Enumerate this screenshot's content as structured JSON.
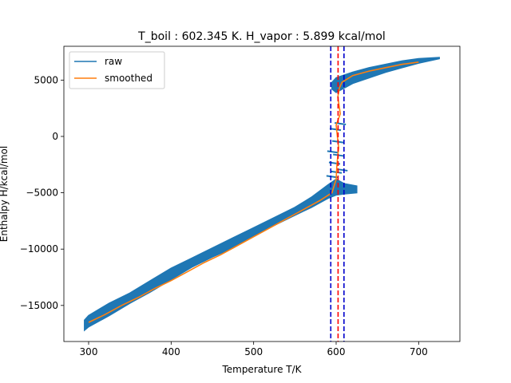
{
  "chart_data": {
    "type": "line",
    "title": "T_boil : 602.345 K. H_vapor : 5.899 kcal/mol",
    "xlabel": "Temperature T/K",
    "ylabel": "Enthalpy H/kcal/mol",
    "xlim": [
      270,
      750
    ],
    "ylim": [
      -18200,
      8000
    ],
    "xticks": [
      300,
      400,
      500,
      600,
      700
    ],
    "yticks": [
      -15000,
      -10000,
      -5000,
      0,
      5000
    ],
    "grid": false,
    "legend": {
      "position": "top-left",
      "entries": [
        "raw",
        "smoothed"
      ]
    },
    "colors": {
      "raw": "#1f77b4",
      "smoothed": "#ff7f0e",
      "tboil_line": "#ff0000",
      "bounds_line": "#0000cc"
    },
    "series": [
      {
        "name": "raw",
        "band": {
          "x": [
            295,
            300,
            325,
            350,
            375,
            400,
            425,
            450,
            475,
            500,
            525,
            550,
            570,
            590,
            600,
            610,
            625
          ],
          "y_low": [
            -17200,
            -16900,
            -15900,
            -14800,
            -13800,
            -12700,
            -11600,
            -10700,
            -9900,
            -8800,
            -7900,
            -7000,
            -6300,
            -5500,
            -5200,
            -5100,
            -5000
          ],
          "y_high": [
            -16300,
            -15900,
            -14800,
            -13900,
            -12800,
            -11700,
            -10800,
            -9900,
            -9000,
            -8100,
            -7200,
            -6300,
            -5400,
            -4300,
            -3800,
            -4200,
            -4400
          ]
        },
        "upper_band": {
          "x": [
            595,
            600,
            620,
            640,
            660,
            680,
            700,
            725
          ],
          "y_low": [
            4200,
            3900,
            4700,
            5200,
            5700,
            6100,
            6500,
            6900
          ],
          "y_high": [
            4800,
            5200,
            5700,
            6100,
            6400,
            6700,
            6900,
            7000
          ]
        },
        "transition_noise": {
          "x": [
            597,
            604,
            599,
            608,
            601,
            596,
            606,
            600,
            603
          ],
          "y": [
            -1300,
            -1600,
            -2300,
            -2900,
            -3100,
            -3500,
            1200,
            700,
            -400
          ]
        }
      },
      {
        "name": "smoothed",
        "x": [
          300,
          320,
          340,
          360,
          380,
          400,
          420,
          440,
          460,
          480,
          500,
          520,
          540,
          560,
          580,
          595,
          600,
          601,
          603,
          600,
          605,
          602,
          604,
          607,
          620,
          640,
          660,
          680,
          700
        ],
        "y": [
          -16500,
          -15800,
          -15000,
          -14300,
          -13500,
          -12800,
          -12000,
          -11200,
          -10500,
          -9700,
          -8900,
          -8100,
          -7300,
          -6500,
          -5700,
          -5000,
          -3800,
          -2500,
          -1000,
          1000,
          2000,
          3500,
          4300,
          4800,
          5400,
          5800,
          6100,
          6400,
          6600
        ]
      }
    ],
    "vlines": [
      {
        "x": 602.345,
        "color": "#ff0000",
        "style": "dashed"
      },
      {
        "x": 593.5,
        "color": "#0000cc",
        "style": "dashed"
      },
      {
        "x": 609.5,
        "color": "#0000cc",
        "style": "dashed"
      }
    ]
  }
}
